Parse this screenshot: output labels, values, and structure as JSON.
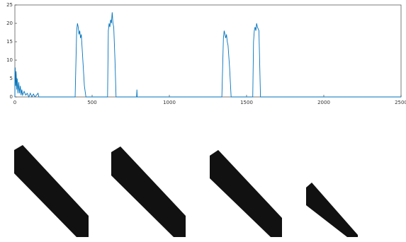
{
  "chart_data": {
    "type": "line",
    "color": "#0072bd",
    "x": [
      0,
      2,
      5,
      8,
      12,
      15,
      20,
      25,
      30,
      35,
      40,
      45,
      50,
      60,
      70,
      80,
      90,
      100,
      110,
      120,
      130,
      150,
      155,
      390,
      400,
      405,
      410,
      415,
      420,
      425,
      430,
      440,
      450,
      460,
      600,
      605,
      610,
      615,
      620,
      625,
      630,
      635,
      640,
      648,
      655,
      788,
      790,
      792,
      1340,
      1350,
      1355,
      1360,
      1365,
      1370,
      1375,
      1380,
      1390,
      1400,
      1540,
      1545,
      1550,
      1555,
      1560,
      1565,
      1570,
      1580,
      1590,
      2500
    ],
    "values": [
      0,
      8,
      3,
      7,
      2,
      5,
      1,
      4,
      1,
      3,
      0.5,
      2,
      0.5,
      1.5,
      0.5,
      1,
      0,
      1,
      0,
      0.8,
      0,
      1,
      0,
      0,
      18,
      20,
      19,
      17,
      18,
      16,
      17,
      10,
      3,
      0,
      0,
      18,
      20,
      19,
      21,
      20,
      23,
      20,
      19,
      10,
      0,
      0,
      2,
      0,
      0,
      16,
      18,
      17,
      16,
      17,
      15,
      14,
      8,
      0,
      0,
      15,
      18,
      19,
      18,
      20,
      19,
      18,
      0,
      0
    ],
    "xlim": [
      0,
      2500
    ],
    "xticks": [
      0,
      500,
      1000,
      1500,
      2000,
      2500
    ],
    "ylim": [
      0,
      25
    ],
    "yticks": [
      0,
      5,
      10,
      15,
      20,
      25
    ]
  }
}
